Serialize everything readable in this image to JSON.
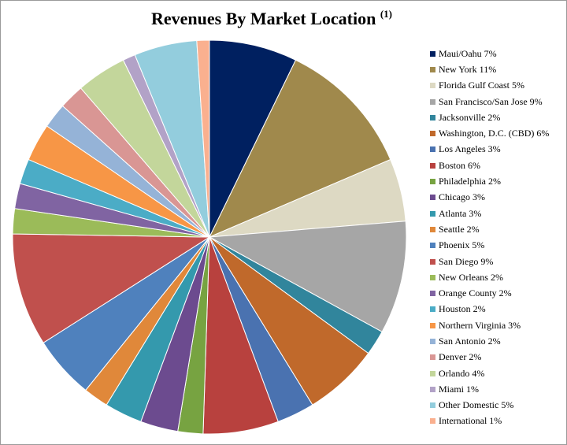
{
  "chart_data": {
    "type": "pie",
    "title": "Revenues By Market Location",
    "title_note": "(1)",
    "legend_position": "right",
    "slices": [
      {
        "label": "Maui/Oahu 7%",
        "value": 7,
        "color": "#002060"
      },
      {
        "label": "New York 11%",
        "value": 11,
        "color": "#a0894c"
      },
      {
        "label": "Florida Gulf Coast 5%",
        "value": 5,
        "color": "#ddd9c3"
      },
      {
        "label": "San Francisco/San Jose 9%",
        "value": 9,
        "color": "#a6a6a6"
      },
      {
        "label": "Jacksonville 2%",
        "value": 2,
        "color": "#31859c"
      },
      {
        "label": "Washington, D.C. (CBD) 6%",
        "value": 6,
        "color": "#c0692b"
      },
      {
        "label": "Los Angeles 3%",
        "value": 3,
        "color": "#4a72b0"
      },
      {
        "label": "Boston 6%",
        "value": 6,
        "color": "#b8413e"
      },
      {
        "label": "Philadelphia 2%",
        "value": 2,
        "color": "#77a341"
      },
      {
        "label": "Chicago 3%",
        "value": 3,
        "color": "#6c4b8f"
      },
      {
        "label": "Atlanta 3%",
        "value": 3,
        "color": "#3499ad"
      },
      {
        "label": "Seattle 2%",
        "value": 2,
        "color": "#e0883a"
      },
      {
        "label": "Phoenix 5%",
        "value": 5,
        "color": "#4f81bd"
      },
      {
        "label": "San Diego 9%",
        "value": 9,
        "color": "#c0504d"
      },
      {
        "label": "New Orleans 2%",
        "value": 2,
        "color": "#9bbb59"
      },
      {
        "label": "Orange County 2%",
        "value": 2,
        "color": "#8064a2"
      },
      {
        "label": "Houston 2%",
        "value": 2,
        "color": "#4bacc6"
      },
      {
        "label": "Northern Virginia 3%",
        "value": 3,
        "color": "#f79646"
      },
      {
        "label": "San Antonio 2%",
        "value": 2,
        "color": "#95b3d7"
      },
      {
        "label": "Denver 2%",
        "value": 2,
        "color": "#d99694"
      },
      {
        "label": "Orlando 4%",
        "value": 4,
        "color": "#c3d69b"
      },
      {
        "label": "Miami 1%",
        "value": 1,
        "color": "#b2a2c7"
      },
      {
        "label": "Other Domestic 5%",
        "value": 5,
        "color": "#93cddd"
      },
      {
        "label": "International 1%",
        "value": 1,
        "color": "#fab08f"
      }
    ]
  }
}
